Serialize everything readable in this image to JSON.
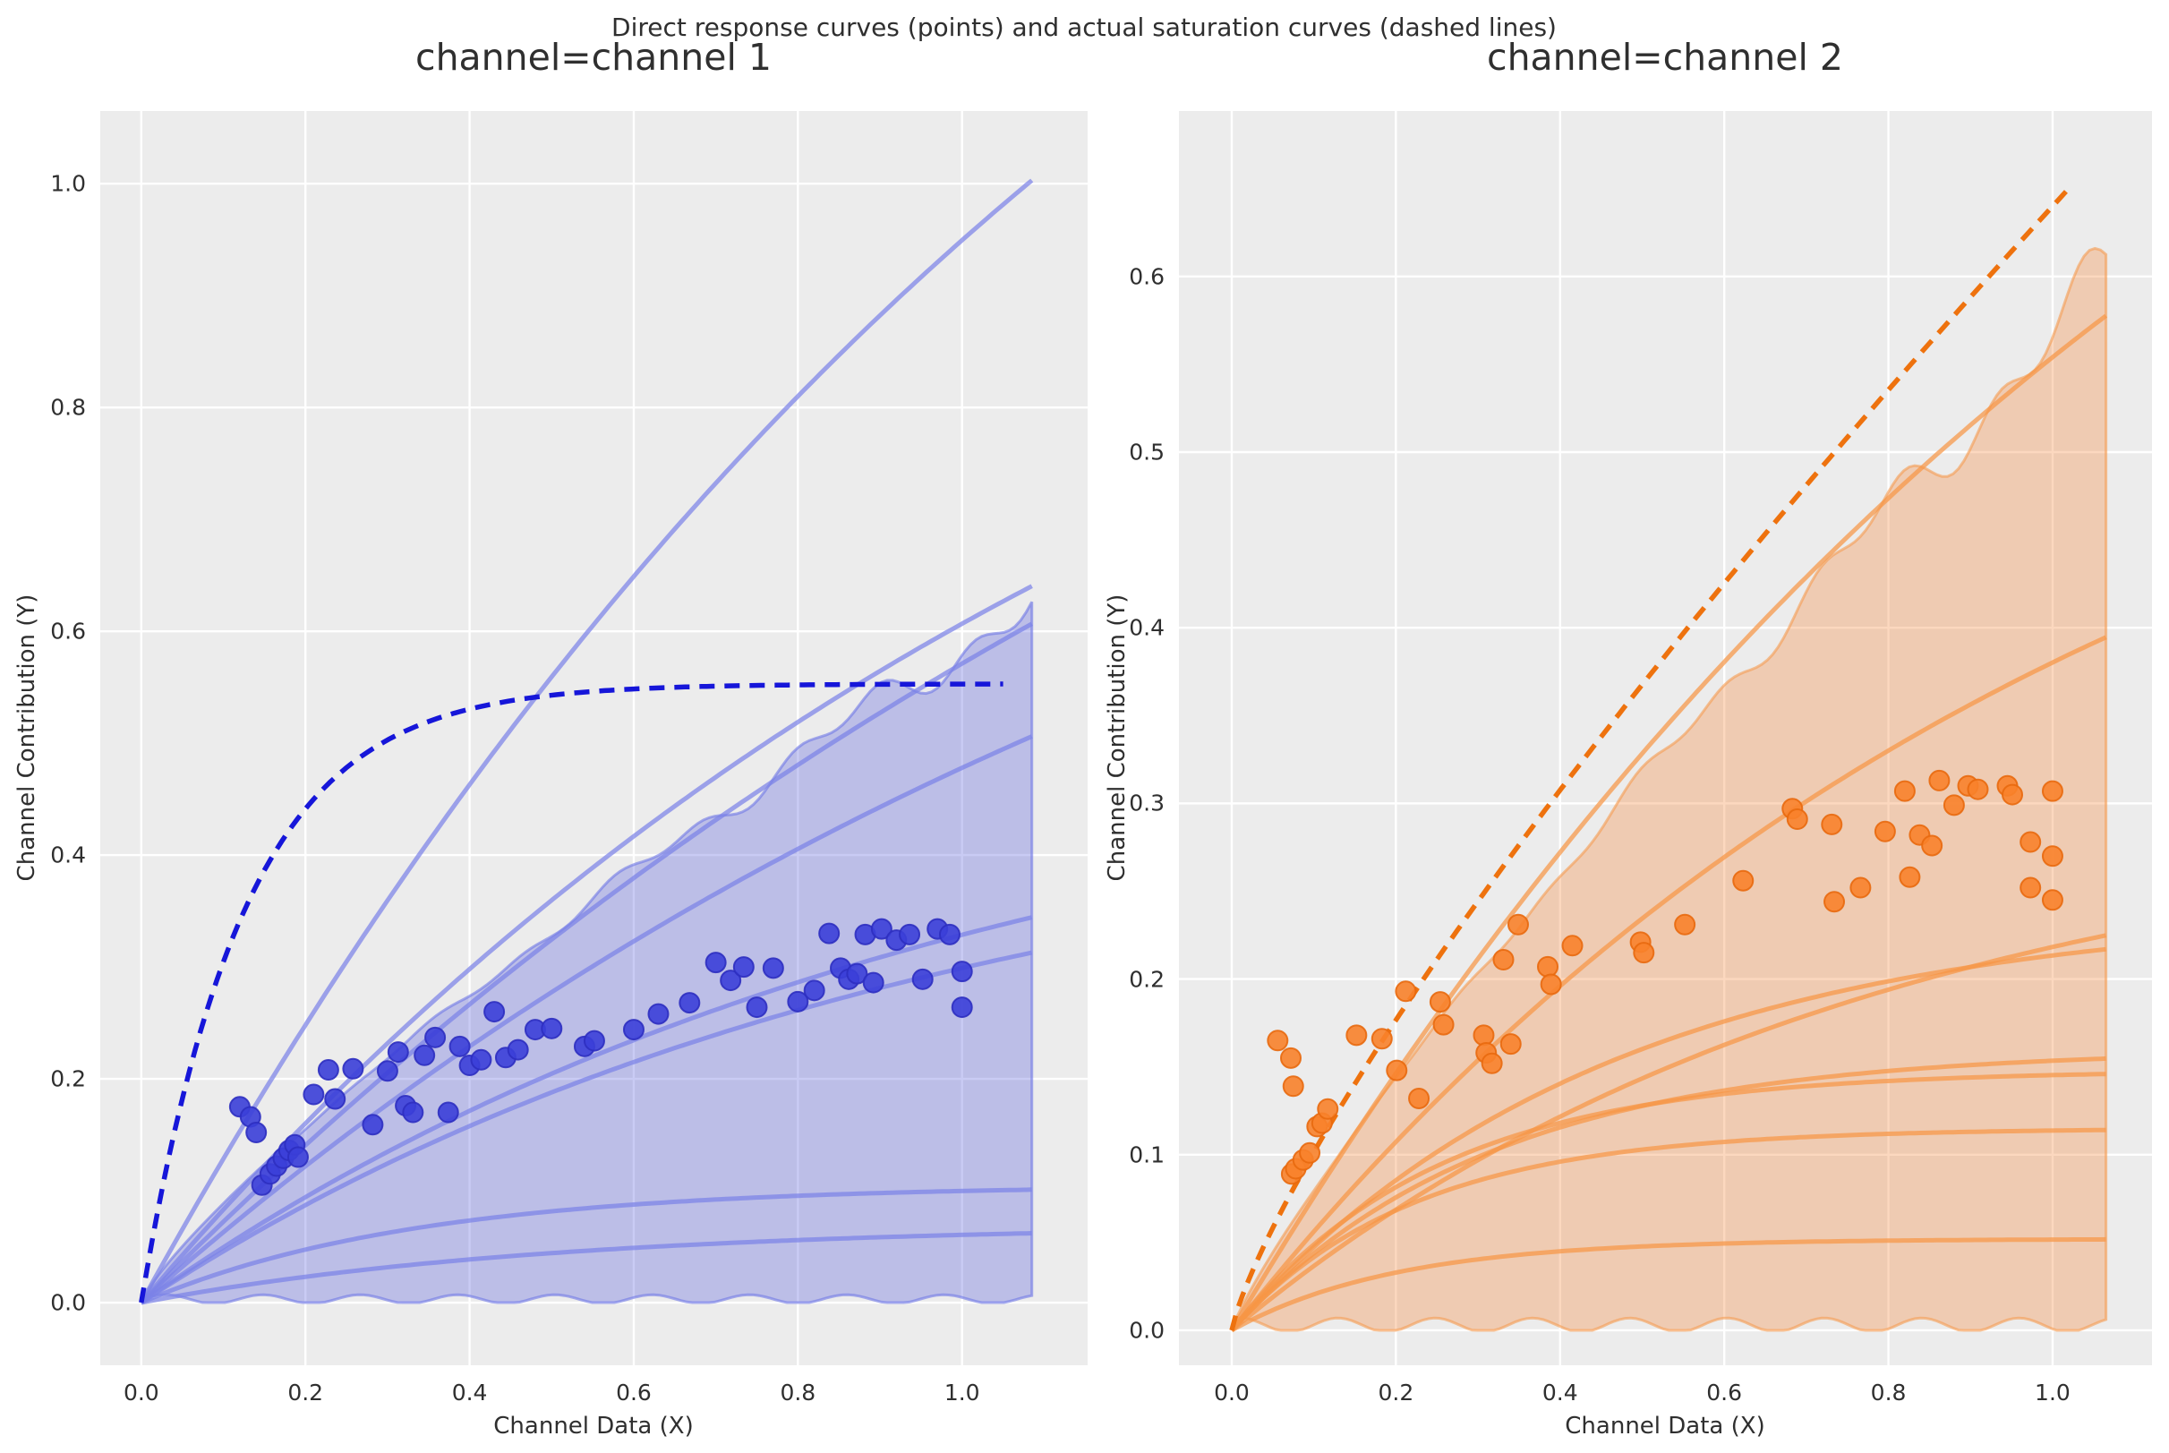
{
  "suptitle": "Direct response curves (points) and actual saturation curves (dashed lines)",
  "chart_data": [
    {
      "type": "scatter",
      "title": "channel=channel 1",
      "xlabel": "Channel Data (X)",
      "ylabel": "Channel Contribution (Y)",
      "xlim": [
        -0.05,
        1.153
      ],
      "ylim": [
        -0.056,
        1.065
      ],
      "xticks": [
        0.0,
        0.2,
        0.4,
        0.6,
        0.8,
        1.0
      ],
      "yticks": [
        0.0,
        0.2,
        0.4,
        0.6,
        0.8,
        1.0
      ],
      "grid": true,
      "legend": "none",
      "colors": {
        "background": "#ececec",
        "gridline": "#ffffff",
        "points": "#3b3fd8",
        "points_edge": "#2d2fc0",
        "dashed": "#1616d9",
        "solid": "#7b82e8",
        "band_fill": "#5a62de",
        "band_edge": "#6e76e6"
      },
      "band": {
        "kind": "pow",
        "A": 0.585,
        "p": 0.82,
        "xmax": 1.085,
        "jitter": 0.05
      },
      "dashed_curve": {
        "kind": "exp",
        "A": 0.553,
        "k": 8.0,
        "xmax": 1.05
      },
      "solid_curves": [
        {
          "kind": "exp",
          "A": 1.85,
          "k": 0.72,
          "xmax": 1.085
        },
        {
          "kind": "exp",
          "A": 1.15,
          "k": 0.75,
          "xmax": 1.085
        },
        {
          "kind": "exp",
          "A": 1.35,
          "k": 0.55,
          "xmax": 1.085
        },
        {
          "kind": "exp",
          "A": 1.0,
          "k": 0.65,
          "xmax": 1.085
        },
        {
          "kind": "exp",
          "A": 0.52,
          "k": 1.0,
          "xmax": 1.085
        },
        {
          "kind": "exp",
          "A": 0.46,
          "k": 1.05,
          "xmax": 1.085
        },
        {
          "kind": "exp",
          "A": 0.105,
          "k": 3.0,
          "xmax": 1.085
        },
        {
          "kind": "exp",
          "A": 0.07,
          "k": 2.0,
          "xmax": 1.085
        }
      ],
      "points": [
        [
          0.12,
          0.175
        ],
        [
          0.133,
          0.166
        ],
        [
          0.14,
          0.152
        ],
        [
          0.147,
          0.105
        ],
        [
          0.157,
          0.115
        ],
        [
          0.165,
          0.122
        ],
        [
          0.173,
          0.129
        ],
        [
          0.18,
          0.136
        ],
        [
          0.187,
          0.141
        ],
        [
          0.191,
          0.13
        ],
        [
          0.21,
          0.186
        ],
        [
          0.228,
          0.208
        ],
        [
          0.236,
          0.182
        ],
        [
          0.258,
          0.209
        ],
        [
          0.282,
          0.159
        ],
        [
          0.3,
          0.207
        ],
        [
          0.313,
          0.224
        ],
        [
          0.322,
          0.176
        ],
        [
          0.331,
          0.17
        ],
        [
          0.345,
          0.221
        ],
        [
          0.358,
          0.237
        ],
        [
          0.374,
          0.17
        ],
        [
          0.388,
          0.229
        ],
        [
          0.4,
          0.212
        ],
        [
          0.414,
          0.217
        ],
        [
          0.43,
          0.26
        ],
        [
          0.444,
          0.219
        ],
        [
          0.459,
          0.226
        ],
        [
          0.48,
          0.244
        ],
        [
          0.5,
          0.245
        ],
        [
          0.54,
          0.229
        ],
        [
          0.552,
          0.234
        ],
        [
          0.6,
          0.244
        ],
        [
          0.63,
          0.258
        ],
        [
          0.668,
          0.268
        ],
        [
          0.7,
          0.304
        ],
        [
          0.718,
          0.288
        ],
        [
          0.734,
          0.3
        ],
        [
          0.75,
          0.264
        ],
        [
          0.77,
          0.299
        ],
        [
          0.8,
          0.269
        ],
        [
          0.82,
          0.279
        ],
        [
          0.838,
          0.33
        ],
        [
          0.852,
          0.299
        ],
        [
          0.862,
          0.289
        ],
        [
          0.872,
          0.294
        ],
        [
          0.882,
          0.329
        ],
        [
          0.892,
          0.286
        ],
        [
          0.902,
          0.334
        ],
        [
          0.92,
          0.324
        ],
        [
          0.936,
          0.329
        ],
        [
          0.952,
          0.289
        ],
        [
          0.97,
          0.334
        ],
        [
          0.985,
          0.329
        ],
        [
          1.0,
          0.296
        ],
        [
          1.0,
          0.264
        ]
      ]
    },
    {
      "type": "scatter",
      "title": "channel=channel 2",
      "xlabel": "Channel Data (X)",
      "ylabel": "Channel Contribution (Y)",
      "xlim": [
        -0.0643,
        1.1211
      ],
      "ylim": [
        -0.0199,
        0.6942
      ],
      "xticks": [
        0.0,
        0.2,
        0.4,
        0.6,
        0.8,
        1.0
      ],
      "yticks": [
        0.0,
        0.1,
        0.2,
        0.3,
        0.4,
        0.5,
        0.6
      ],
      "grid": true,
      "legend": "none",
      "colors": {
        "background": "#ececec",
        "gridline": "#ffffff",
        "points": "#f8822b",
        "points_edge": "#e8690e",
        "dashed": "#ee720e",
        "solid": "#f79645",
        "band_fill": "#f5893c",
        "band_edge": "#f59b50"
      },
      "band": {
        "kind": "pow",
        "A": 0.565,
        "p": 0.85,
        "xmax": 1.065,
        "jitter": 0.05
      },
      "dashed_curve": {
        "kind": "pow",
        "A": 0.64,
        "p": 0.8,
        "xmax": 1.02
      },
      "solid_curves": [
        {
          "kind": "exp",
          "A": 1.05,
          "k": 0.75,
          "xmax": 1.065
        },
        {
          "kind": "exp",
          "A": 0.62,
          "k": 0.95,
          "xmax": 1.065
        },
        {
          "kind": "exp",
          "A": 0.3,
          "k": 1.3,
          "xmax": 1.065
        },
        {
          "kind": "exp",
          "A": 0.24,
          "k": 2.2,
          "xmax": 1.065
        },
        {
          "kind": "exp",
          "A": 0.16,
          "k": 3.2,
          "xmax": 1.065
        },
        {
          "kind": "exp",
          "A": 0.148,
          "k": 4.0,
          "xmax": 1.065
        },
        {
          "kind": "exp",
          "A": 0.115,
          "k": 4.5,
          "xmax": 1.065
        },
        {
          "kind": "exp",
          "A": 0.052,
          "k": 5.0,
          "xmax": 1.065
        }
      ],
      "points": [
        [
          0.056,
          0.165
        ],
        [
          0.072,
          0.155
        ],
        [
          0.075,
          0.139
        ],
        [
          0.073,
          0.089
        ],
        [
          0.078,
          0.092
        ],
        [
          0.087,
          0.097
        ],
        [
          0.095,
          0.101
        ],
        [
          0.104,
          0.116
        ],
        [
          0.11,
          0.118
        ],
        [
          0.117,
          0.126
        ],
        [
          0.152,
          0.168
        ],
        [
          0.183,
          0.166
        ],
        [
          0.201,
          0.148
        ],
        [
          0.212,
          0.193
        ],
        [
          0.228,
          0.132
        ],
        [
          0.254,
          0.187
        ],
        [
          0.258,
          0.174
        ],
        [
          0.307,
          0.168
        ],
        [
          0.31,
          0.158
        ],
        [
          0.317,
          0.152
        ],
        [
          0.331,
          0.211
        ],
        [
          0.34,
          0.163
        ],
        [
          0.349,
          0.231
        ],
        [
          0.385,
          0.207
        ],
        [
          0.389,
          0.197
        ],
        [
          0.415,
          0.219
        ],
        [
          0.498,
          0.221
        ],
        [
          0.502,
          0.215
        ],
        [
          0.552,
          0.231
        ],
        [
          0.623,
          0.256
        ],
        [
          0.683,
          0.297
        ],
        [
          0.689,
          0.291
        ],
        [
          0.731,
          0.288
        ],
        [
          0.734,
          0.244
        ],
        [
          0.766,
          0.252
        ],
        [
          0.796,
          0.284
        ],
        [
          0.82,
          0.307
        ],
        [
          0.826,
          0.258
        ],
        [
          0.838,
          0.282
        ],
        [
          0.853,
          0.276
        ],
        [
          0.862,
          0.313
        ],
        [
          0.88,
          0.299
        ],
        [
          0.897,
          0.31
        ],
        [
          0.909,
          0.308
        ],
        [
          0.945,
          0.31
        ],
        [
          0.951,
          0.305
        ],
        [
          0.973,
          0.278
        ],
        [
          0.973,
          0.252
        ],
        [
          1.0,
          0.307
        ],
        [
          1.0,
          0.27
        ],
        [
          1.0,
          0.245
        ]
      ]
    }
  ]
}
